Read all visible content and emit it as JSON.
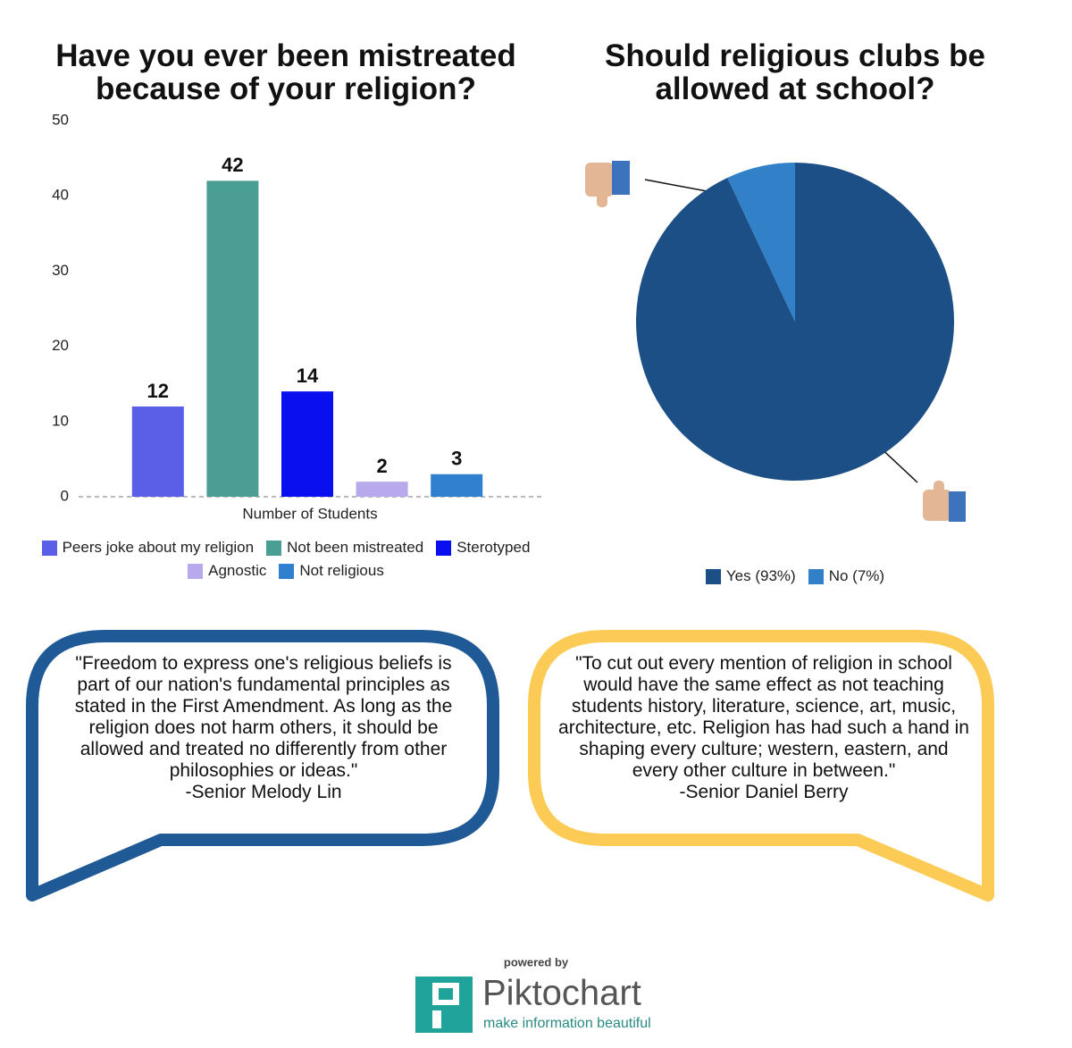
{
  "chart_data": [
    {
      "type": "bar",
      "title": "Have you ever been mistreated because of your religion?",
      "x_label": "Number of Students",
      "categories": [
        "Peers joke about my religion",
        "Not been mistreated",
        "Sterotyped",
        "Agnostic",
        "Not religious"
      ],
      "values": [
        12,
        42,
        14,
        2,
        3
      ],
      "colors": [
        "#5b5ee6",
        "#4a9e94",
        "#0a0ff0",
        "#b7a9ec",
        "#3180d0"
      ],
      "ylim": [
        0,
        50
      ],
      "yticks": [
        0,
        10,
        20,
        30,
        40,
        50
      ],
      "grid": false
    },
    {
      "type": "pie",
      "title": "Should religious clubs be allowed at school?",
      "categories": [
        "Yes (93%)",
        "No (7%)"
      ],
      "values": [
        93,
        7
      ],
      "colors": [
        "#1b4f86",
        "#3280c8"
      ]
    }
  ],
  "quotes": [
    {
      "text": "\"Freedom to express one's religious beliefs is part of our nation's fundamental principles as stated in the First Amendment. As long as the religion does not harm others, it should be allowed and treated no differently from other philosophies or ideas.\"",
      "author": "-Senior Melody Lin"
    },
    {
      "text": "\"To cut out every mention of religion in school would have the same effect as not teaching students history, literature, science, art, music, architecture, etc. Religion has had such a hand in shaping every culture; western, eastern, and every other culture in between.\"",
      "author": "-Senior Daniel Berry"
    }
  ],
  "footer": {
    "powered": "powered by",
    "brand": "Piktochart",
    "tagline": "make information beautiful"
  }
}
